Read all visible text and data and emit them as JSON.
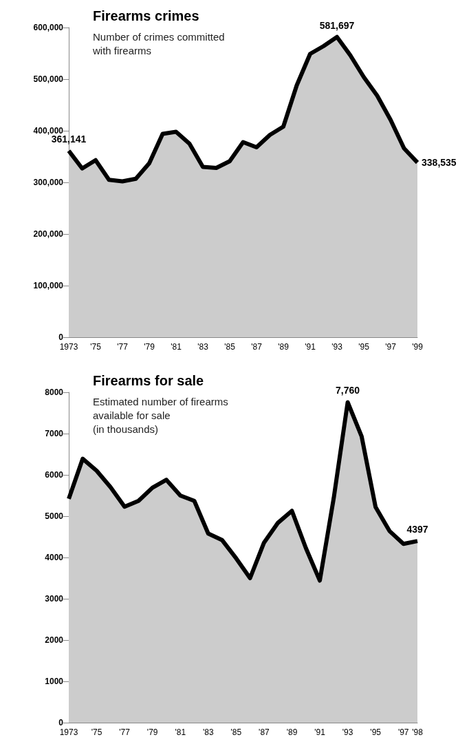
{
  "chart_data": [
    {
      "type": "area",
      "title": "Firearms crimes",
      "subtitle": "Number of crimes committed\nwith firearms",
      "categories": [
        "1973",
        null,
        "'75",
        null,
        "'77",
        null,
        "'79",
        null,
        "'81",
        null,
        "'83",
        null,
        "'85",
        null,
        "'87",
        null,
        "'89",
        null,
        "'91",
        null,
        "'93",
        null,
        "'95",
        null,
        "'97",
        null,
        "'99"
      ],
      "series": [
        {
          "color": "#cccccc",
          "values": [
            361141,
            327000,
            343000,
            305000,
            302000,
            307000,
            337000,
            394000,
            398000,
            375000,
            330000,
            328000,
            341000,
            378000,
            368000,
            392000,
            408000,
            488000,
            549000,
            564000,
            581697,
            546000,
            504000,
            468000,
            421000,
            366000,
            338535
          ],
          "value_labels": [
            "361,141",
            null,
            null,
            null,
            null,
            null,
            null,
            null,
            null,
            null,
            null,
            null,
            null,
            null,
            null,
            null,
            null,
            null,
            null,
            null,
            "581,697",
            null,
            null,
            null,
            null,
            null,
            "338,535"
          ]
        }
      ],
      "ylim": [
        0,
        600000
      ],
      "yticks": [
        0,
        {
          "value": 100000,
          "label": "100,000"
        },
        {
          "value": 200000,
          "label": "200,000"
        },
        {
          "value": 300000,
          "label": "300,000"
        },
        {
          "value": 400000,
          "label": "400,000"
        },
        {
          "value": 500000,
          "label": "500,000"
        },
        {
          "value": 600000,
          "label": "600,000"
        }
      ],
      "grid": false
    },
    {
      "type": "area",
      "title": "Firearms for sale",
      "subtitle": "Estimated number of firearms\navailable for sale\n(in thousands)",
      "categories": [
        "1973",
        null,
        "'75",
        null,
        "'77",
        null,
        "'79",
        null,
        "'81",
        null,
        "'83",
        null,
        "'85",
        null,
        "'87",
        null,
        "'89",
        null,
        "'91",
        null,
        "'93",
        null,
        "'95",
        null,
        "'97",
        "'98"
      ],
      "series": [
        {
          "color": "#cccccc",
          "values": [
            5420,
            6390,
            6100,
            5700,
            5230,
            5370,
            5690,
            5880,
            5500,
            5370,
            4580,
            4420,
            3980,
            3500,
            4360,
            4840,
            5130,
            4230,
            3440,
            5440,
            7760,
            6930,
            5220,
            4640,
            4330,
            4397
          ],
          "value_labels": [
            null,
            null,
            null,
            null,
            null,
            null,
            null,
            null,
            null,
            null,
            null,
            null,
            null,
            null,
            null,
            null,
            null,
            null,
            null,
            null,
            "7,760",
            null,
            null,
            null,
            null,
            "4397"
          ]
        }
      ],
      "ylim": [
        0,
        8000
      ],
      "yticks": [
        0,
        1000,
        2000,
        3000,
        4000,
        5000,
        6000,
        7000,
        8000
      ],
      "grid": false
    }
  ]
}
